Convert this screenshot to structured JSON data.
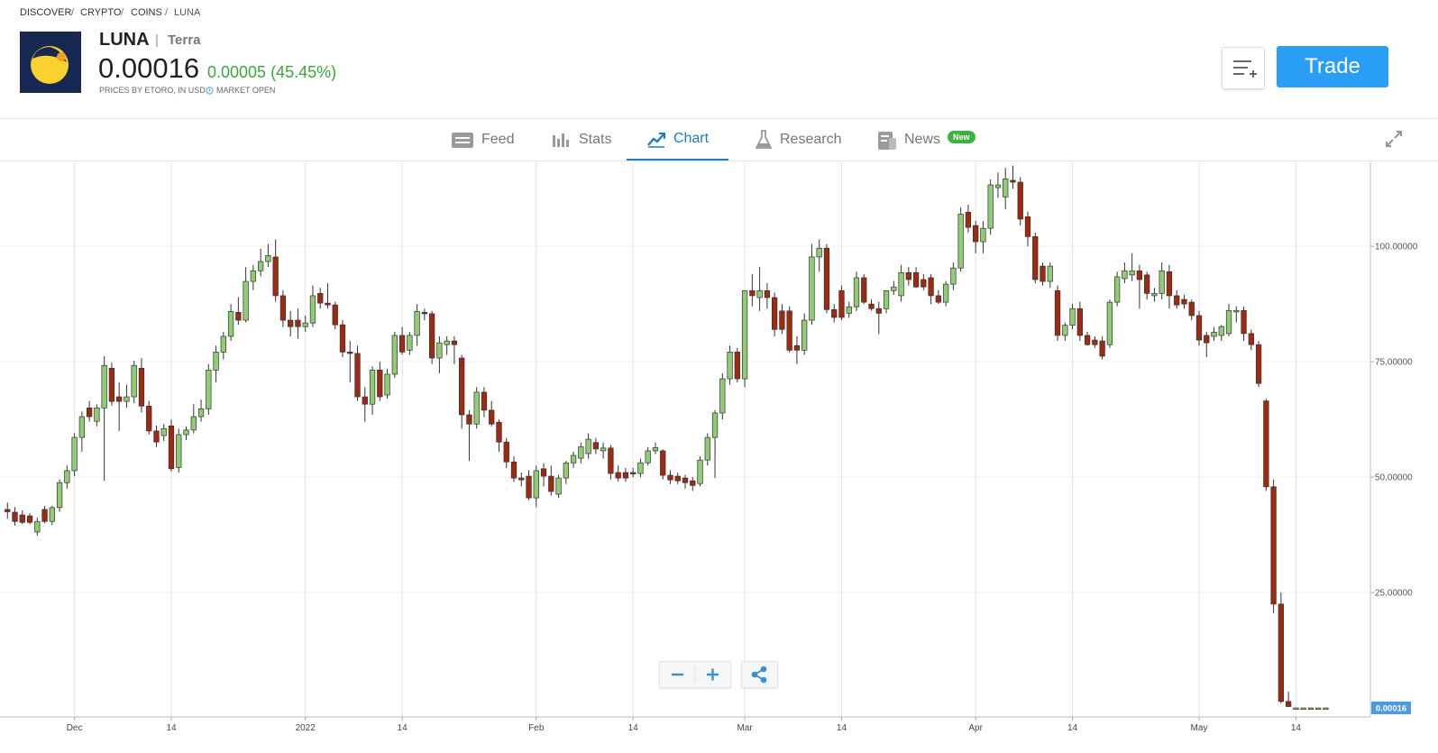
{
  "header": {
    "breadcrumb": [
      "DISCOVER",
      "CRYPTO",
      "COINS",
      "LUNA"
    ],
    "symbol": "LUNA",
    "name": "Terra",
    "price": "0.00016",
    "change": "0.00005 (45.45%)",
    "source": "PRICES BY ETORO, IN USD",
    "status": "MARKET OPEN",
    "trade_button": "Trade"
  },
  "tabs": [
    {
      "label": "Feed"
    },
    {
      "label": "Stats"
    },
    {
      "label": "Chart"
    },
    {
      "label": "Research"
    },
    {
      "label": "News",
      "badge": "New"
    }
  ],
  "chart_data": {
    "type": "candlestick",
    "up_color": "#8fcc74",
    "down_color": "#9e2a12",
    "grid": true,
    "xlim": [
      "2021-11-21",
      "2022-05-24"
    ],
    "ylim": [
      -1.95,
      118.2
    ],
    "xticks": [
      {
        "value": "2021-12-01",
        "label": "Dec"
      },
      {
        "value": "2021-12-14",
        "label": "14"
      },
      {
        "value": "2022-01-01",
        "label": "2022"
      },
      {
        "value": "2022-01-14",
        "label": "14"
      },
      {
        "value": "2022-02-01",
        "label": "Feb"
      },
      {
        "value": "2022-02-14",
        "label": "14"
      },
      {
        "value": "2022-03-01",
        "label": "Mar"
      },
      {
        "value": "2022-03-14",
        "label": "14"
      },
      {
        "value": "2022-04-01",
        "label": "Apr"
      },
      {
        "value": "2022-04-14",
        "label": "14"
      },
      {
        "value": "2022-05-01",
        "label": "May"
      },
      {
        "value": "2022-05-14",
        "label": "14"
      }
    ],
    "yticks": [
      {
        "value": 25,
        "label": "25.00000"
      },
      {
        "value": 50,
        "label": "50.00000"
      },
      {
        "value": 75,
        "label": "75.00000"
      },
      {
        "value": 100,
        "label": "100.00000"
      }
    ],
    "last_price": {
      "value": 0.00016,
      "label": "0.00016"
    },
    "x": [
      "2021-11-22",
      "2021-11-23",
      "2021-11-24",
      "2021-11-25",
      "2021-11-26",
      "2021-11-27",
      "2021-11-28",
      "2021-11-29",
      "2021-11-30",
      "2021-12-01",
      "2021-12-02",
      "2021-12-03",
      "2021-12-04",
      "2021-12-05",
      "2021-12-06",
      "2021-12-07",
      "2021-12-08",
      "2021-12-09",
      "2021-12-10",
      "2021-12-11",
      "2021-12-12",
      "2021-12-13",
      "2021-12-14",
      "2021-12-15",
      "2021-12-16",
      "2021-12-17",
      "2021-12-18",
      "2021-12-19",
      "2021-12-20",
      "2021-12-21",
      "2021-12-22",
      "2021-12-23",
      "2021-12-24",
      "2021-12-25",
      "2021-12-26",
      "2021-12-27",
      "2021-12-28",
      "2021-12-29",
      "2021-12-30",
      "2021-12-31",
      "2022-01-01",
      "2022-01-02",
      "2022-01-03",
      "2022-01-04",
      "2022-01-05",
      "2022-01-06",
      "2022-01-07",
      "2022-01-08",
      "2022-01-09",
      "2022-01-10",
      "2022-01-11",
      "2022-01-12",
      "2022-01-13",
      "2022-01-14",
      "2022-01-15",
      "2022-01-16",
      "2022-01-17",
      "2022-01-18",
      "2022-01-19",
      "2022-01-20",
      "2022-01-21",
      "2022-01-22",
      "2022-01-23",
      "2022-01-24",
      "2022-01-25",
      "2022-01-26",
      "2022-01-27",
      "2022-01-28",
      "2022-01-29",
      "2022-01-30",
      "2022-01-31",
      "2022-02-01",
      "2022-02-02",
      "2022-02-03",
      "2022-02-04",
      "2022-02-05",
      "2022-02-06",
      "2022-02-07",
      "2022-02-08",
      "2022-02-09",
      "2022-02-10",
      "2022-02-11",
      "2022-02-12",
      "2022-02-13",
      "2022-02-14",
      "2022-02-15",
      "2022-02-16",
      "2022-02-17",
      "2022-02-18",
      "2022-02-19",
      "2022-02-20",
      "2022-02-21",
      "2022-02-22",
      "2022-02-23",
      "2022-02-24",
      "2022-02-25",
      "2022-02-26",
      "2022-02-27",
      "2022-02-28",
      "2022-03-01",
      "2022-03-02",
      "2022-03-03",
      "2022-03-04",
      "2022-03-05",
      "2022-03-06",
      "2022-03-07",
      "2022-03-08",
      "2022-03-09",
      "2022-03-10",
      "2022-03-11",
      "2022-03-12",
      "2022-03-13",
      "2022-03-14",
      "2022-03-15",
      "2022-03-16",
      "2022-03-17",
      "2022-03-18",
      "2022-03-19",
      "2022-03-20",
      "2022-03-21",
      "2022-03-22",
      "2022-03-23",
      "2022-03-24",
      "2022-03-25",
      "2022-03-26",
      "2022-03-27",
      "2022-03-28",
      "2022-03-29",
      "2022-03-30",
      "2022-03-31",
      "2022-04-01",
      "2022-04-02",
      "2022-04-03",
      "2022-04-04",
      "2022-04-05",
      "2022-04-06",
      "2022-04-07",
      "2022-04-08",
      "2022-04-09",
      "2022-04-10",
      "2022-04-11",
      "2022-04-12",
      "2022-04-13",
      "2022-04-14",
      "2022-04-15",
      "2022-04-16",
      "2022-04-17",
      "2022-04-18",
      "2022-04-19",
      "2022-04-20",
      "2022-04-21",
      "2022-04-22",
      "2022-04-23",
      "2022-04-24",
      "2022-04-25",
      "2022-04-26",
      "2022-04-27",
      "2022-04-28",
      "2022-04-29",
      "2022-04-30",
      "2022-05-01",
      "2022-05-02",
      "2022-05-03",
      "2022-05-04",
      "2022-05-05",
      "2022-05-06",
      "2022-05-07",
      "2022-05-08",
      "2022-05-09",
      "2022-05-10",
      "2022-05-11",
      "2022-05-12",
      "2022-05-13",
      "2022-05-14",
      "2022-05-15",
      "2022-05-16",
      "2022-05-17",
      "2022-05-18"
    ],
    "open": [
      43.0,
      42.4,
      41.8,
      41.6,
      38.1,
      43.0,
      40.4,
      43.4,
      48.8,
      51.4,
      58.6,
      65.0,
      62.1,
      65.0,
      73.6,
      67.4,
      66.4,
      67.4,
      73.6,
      65.4,
      60.0,
      59.0,
      61.1,
      52.1,
      59.2,
      60.2,
      63.1,
      64.8,
      73.2,
      77.1,
      80.5,
      85.7,
      84.0,
      92.4,
      94.7,
      96.7,
      97.7,
      89.3,
      84.0,
      84.0,
      82.6,
      83.4,
      89.8,
      87.7,
      87.3,
      83.0,
      77.1,
      76.8,
      67.4,
      65.8,
      73.2,
      67.8,
      72.3,
      80.7,
      77.5,
      80.7,
      85.7,
      85.4,
      75.8,
      78.7,
      79.5,
      75.8,
      63.5,
      61.5,
      68.4,
      64.5,
      61.9,
      57.6,
      53.3,
      49.8,
      50.2,
      45.5,
      51.8,
      50.2,
      46.3,
      49.8,
      53.1,
      54.1,
      55.1,
      57.5,
      55.7,
      56.3,
      51.0,
      51.0,
      51.0,
      50.8,
      53.1,
      55.7,
      55.7,
      50.4,
      50.2,
      49.8,
      49.2,
      48.6,
      53.7,
      58.6,
      63.9,
      71.3,
      77.1,
      71.3,
      90.4,
      88.9,
      90.4,
      88.9,
      86.0,
      86.0,
      78.5,
      77.5,
      84.0,
      97.7,
      99.6,
      86.3,
      90.4,
      85.5,
      86.9,
      93.2,
      87.5,
      86.5,
      86.5,
      90.4,
      89.3,
      94.3,
      94.3,
      92.8,
      93.2,
      89.3,
      87.9,
      91.8,
      95.3,
      107.4,
      104.5,
      101.0,
      103.9,
      112.7,
      110.7,
      114.3,
      113.9,
      106.4,
      102.1,
      95.7,
      92.4,
      90.4,
      80.7,
      82.9,
      86.5,
      80.7,
      79.7,
      79.5,
      78.7,
      87.9,
      93.0,
      93.8,
      94.7,
      93.8,
      89.3,
      89.8,
      94.5,
      89.3,
      88.5,
      87.9,
      85.0,
      80.7,
      80.5,
      80.7,
      81.1,
      85.9,
      86.1,
      81.1,
      78.7,
      66.5,
      47.9,
      22.5,
      1.4,
      0.00016,
      0.00016,
      0.00016,
      0.00016,
      0.00016
    ],
    "high": [
      44.5,
      43.5,
      42.8,
      42.2,
      41.2,
      43.8,
      43.8,
      49.5,
      52.5,
      59.5,
      64.2,
      66.5,
      65.8,
      76.2,
      74.8,
      70.5,
      70.0,
      75.2,
      75.8,
      66.5,
      61.2,
      61.5,
      62.5,
      60.5,
      61.0,
      65.8,
      66.8,
      74.5,
      78.5,
      81.5,
      87.5,
      89.0,
      95.5,
      96.0,
      99.5,
      100.5,
      101.5,
      90.5,
      86.0,
      86.5,
      85.0,
      91.5,
      91.0,
      92.0,
      88.0,
      84.0,
      79.5,
      78.5,
      69.5,
      74.0,
      75.0,
      73.5,
      81.5,
      82.5,
      81.5,
      87.5,
      86.5,
      86.0,
      80.5,
      80.5,
      80.5,
      76.5,
      64.5,
      69.5,
      69.5,
      66.5,
      62.5,
      58.5,
      54.5,
      51.0,
      51.5,
      52.5,
      53.0,
      52.5,
      50.5,
      53.5,
      55.5,
      57.5,
      59.5,
      58.5,
      57.5,
      57.0,
      52.5,
      52.0,
      52.0,
      54.0,
      56.5,
      57.5,
      56.0,
      51.5,
      51.0,
      50.5,
      50.0,
      54.5,
      59.5,
      64.5,
      72.5,
      78.5,
      78.0,
      90.5,
      94.0,
      95.5,
      92.0,
      90.0,
      87.5,
      87.0,
      80.5,
      85.5,
      100.5,
      101.5,
      100.5,
      87.5,
      91.5,
      88.0,
      94.5,
      94.0,
      88.5,
      88.0,
      90.5,
      92.5,
      96.0,
      95.5,
      95.5,
      94.0,
      94.0,
      90.5,
      92.5,
      96.5,
      108.5,
      109.0,
      105.5,
      105.5,
      114.5,
      116.0,
      117.0,
      117.5,
      115.0,
      107.5,
      103.0,
      96.5,
      96.5,
      91.5,
      83.5,
      87.5,
      88.0,
      81.5,
      80.5,
      80.5,
      88.5,
      94.5,
      96.5,
      98.5,
      96.0,
      94.5,
      91.0,
      96.5,
      96.0,
      90.5,
      89.5,
      88.5,
      86.0,
      81.5,
      82.5,
      83.0,
      87.5,
      87.0,
      87.0,
      82.0,
      79.5,
      67.0,
      49.5,
      25.0,
      3.5,
      0.00016,
      0.00016,
      0.00016,
      0.00016,
      0.00016
    ],
    "low": [
      41.0,
      39.5,
      39.8,
      39.8,
      37.3,
      40.0,
      39.6,
      42.5,
      47.5,
      50.2,
      55.5,
      62.0,
      61.0,
      49.2,
      65.5,
      60.0,
      65.0,
      66.0,
      64.0,
      59.2,
      56.5,
      57.8,
      51.2,
      51.0,
      58.0,
      59.5,
      62.0,
      63.5,
      70.5,
      75.5,
      79.5,
      83.0,
      83.5,
      90.5,
      93.5,
      95.5,
      88.0,
      82.5,
      80.5,
      80.0,
      81.5,
      82.5,
      86.5,
      86.5,
      82.0,
      76.0,
      70.5,
      66.5,
      62.0,
      63.5,
      66.5,
      67.0,
      71.5,
      76.5,
      76.5,
      78.5,
      84.0,
      74.5,
      72.5,
      76.5,
      74.5,
      60.5,
      53.5,
      60.5,
      63.0,
      61.0,
      55.5,
      52.0,
      49.0,
      48.0,
      45.0,
      43.5,
      48.0,
      46.0,
      45.5,
      48.5,
      52.0,
      53.0,
      54.0,
      55.0,
      54.0,
      49.5,
      49.0,
      49.0,
      50.0,
      50.0,
      52.5,
      55.0,
      49.5,
      48.5,
      48.5,
      47.5,
      47.0,
      48.0,
      52.5,
      49.8,
      62.5,
      70.0,
      70.5,
      69.5,
      87.0,
      86.0,
      86.5,
      80.5,
      81.0,
      77.0,
      74.5,
      76.5,
      83.0,
      94.5,
      85.5,
      83.5,
      84.0,
      84.5,
      86.0,
      87.5,
      86.0,
      81.0,
      85.5,
      89.5,
      88.0,
      91.5,
      91.0,
      90.5,
      87.5,
      87.5,
      87.0,
      90.5,
      94.5,
      103.0,
      98.5,
      98.5,
      102.5,
      110.5,
      108.0,
      112.5,
      104.5,
      100.0,
      92.0,
      91.5,
      91.0,
      79.5,
      79.5,
      82.0,
      79.5,
      78.5,
      78.0,
      75.5,
      78.0,
      87.0,
      92.0,
      92.5,
      86.5,
      88.5,
      88.0,
      88.5,
      86.5,
      86.5,
      86.5,
      84.0,
      78.5,
      76.0,
      79.5,
      79.5,
      80.5,
      83.5,
      79.5,
      77.5,
      69.5,
      47.0,
      20.5,
      1.0,
      0.2,
      0.00016,
      0.00016,
      0.00016,
      0.00016,
      0.00016
    ],
    "close": [
      42.5,
      40.4,
      40.2,
      40.2,
      40.4,
      40.4,
      43.4,
      48.8,
      51.4,
      58.6,
      63.1,
      63.1,
      65.0,
      74.2,
      66.4,
      66.4,
      67.4,
      74.2,
      65.4,
      60.0,
      57.6,
      60.5,
      51.8,
      59.2,
      60.2,
      63.1,
      64.8,
      73.2,
      77.1,
      80.5,
      85.9,
      84.0,
      92.4,
      94.7,
      96.7,
      98.0,
      89.3,
      84.0,
      82.6,
      82.6,
      83.4,
      89.3,
      87.7,
      87.3,
      83.0,
      77.1,
      76.8,
      67.4,
      65.8,
      73.2,
      67.4,
      72.3,
      80.7,
      77.1,
      80.7,
      85.9,
      85.4,
      75.8,
      79.1,
      79.5,
      78.7,
      63.5,
      61.5,
      68.4,
      64.5,
      61.5,
      57.6,
      53.3,
      49.8,
      49.4,
      45.5,
      51.4,
      50.2,
      46.9,
      49.8,
      53.1,
      54.7,
      56.6,
      58.2,
      56.1,
      56.3,
      50.8,
      49.8,
      49.8,
      50.8,
      53.1,
      55.7,
      56.4,
      50.4,
      49.4,
      49.2,
      48.8,
      48.2,
      53.7,
      58.6,
      63.9,
      71.3,
      77.1,
      71.3,
      90.4,
      89.3,
      90.4,
      88.9,
      82.0,
      82.0,
      77.5,
      77.5,
      84.0,
      97.7,
      99.6,
      86.3,
      84.6,
      84.6,
      86.9,
      93.2,
      87.9,
      86.5,
      85.5,
      90.4,
      91.2,
      94.3,
      92.8,
      91.2,
      91.2,
      89.3,
      87.9,
      91.8,
      95.3,
      107.0,
      104.1,
      101.0,
      103.9,
      113.3,
      113.3,
      114.6,
      113.9,
      105.9,
      102.1,
      92.8,
      92.4,
      95.7,
      80.7,
      82.9,
      86.5,
      80.7,
      78.7,
      78.7,
      76.2,
      87.9,
      93.4,
      94.7,
      94.7,
      92.8,
      89.8,
      89.8,
      94.7,
      89.3,
      87.3,
      87.5,
      85.0,
      79.7,
      79.1,
      81.4,
      82.6,
      86.1,
      86.1,
      81.1,
      78.7,
      70.3,
      47.9,
      22.5,
      1.4,
      0.3,
      0.00016,
      0.00016,
      0.00016,
      0.00016,
      0.00016
    ]
  }
}
